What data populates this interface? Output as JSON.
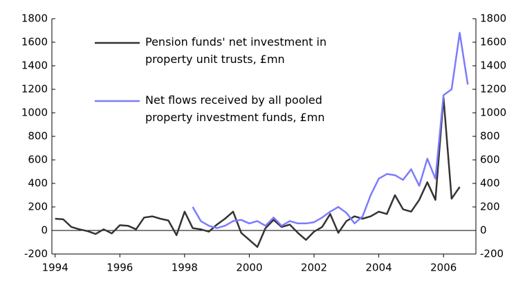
{
  "chart_data": {
    "type": "line",
    "series": [
      {
        "name": "Pension funds' net investment in property unit trusts, £mn",
        "color": "#333333",
        "x": [
          1994.0,
          1994.25,
          1994.5,
          1994.75,
          1995.0,
          1995.25,
          1995.5,
          1995.75,
          1996.0,
          1996.25,
          1996.5,
          1996.75,
          1997.0,
          1997.25,
          1997.5,
          1997.75,
          1998.0,
          1998.25,
          1998.5,
          1998.75,
          1999.0,
          1999.25,
          1999.5,
          1999.75,
          2000.0,
          2000.25,
          2000.5,
          2000.75,
          2001.0,
          2001.25,
          2001.5,
          2001.75,
          2002.0,
          2002.25,
          2002.5,
          2002.75,
          2003.0,
          2003.25,
          2003.5,
          2003.75,
          2004.0,
          2004.25,
          2004.5,
          2004.75,
          2005.0,
          2005.25,
          2005.5,
          2005.75,
          2006.0,
          2006.25,
          2006.5
        ],
        "values": [
          100,
          95,
          30,
          10,
          -5,
          -30,
          10,
          -25,
          45,
          40,
          10,
          110,
          120,
          100,
          85,
          -40,
          160,
          20,
          10,
          -10,
          50,
          100,
          160,
          -20,
          -80,
          -140,
          20,
          90,
          30,
          50,
          -20,
          -80,
          -10,
          30,
          140,
          -20,
          80,
          120,
          100,
          120,
          160,
          140,
          300,
          180,
          160,
          260,
          410,
          260,
          1130,
          270,
          370
        ]
      },
      {
        "name": "Net flows received by all pooled property investment funds, £mn",
        "color": "#7b7bff",
        "axis": "y2",
        "x": [
          1998.25,
          1998.5,
          1998.75,
          1999.0,
          1999.25,
          1999.5,
          1999.75,
          2000.0,
          2000.25,
          2000.5,
          2000.75,
          2001.0,
          2001.25,
          2001.5,
          2001.75,
          2002.0,
          2002.25,
          2002.5,
          2002.75,
          2003.0,
          2003.25,
          2003.5,
          2003.75,
          2004.0,
          2004.25,
          2004.5,
          2004.75,
          2005.0,
          2005.25,
          2005.5,
          2005.75,
          2006.0,
          2006.25,
          2006.5,
          2006.75
        ],
        "values": [
          200,
          80,
          40,
          20,
          40,
          80,
          90,
          60,
          80,
          40,
          110,
          40,
          80,
          60,
          60,
          70,
          110,
          160,
          200,
          150,
          60,
          120,
          300,
          440,
          480,
          470,
          430,
          520,
          380,
          610,
          440,
          1150,
          1200,
          1680,
          1240
        ]
      }
    ],
    "xlim": [
      1993.9,
      2007.0
    ],
    "xticks": [
      1994,
      1996,
      1998,
      2000,
      2002,
      2004,
      2006
    ],
    "ylim": [
      -200,
      1800
    ],
    "yticks": [
      -200,
      0,
      200,
      400,
      600,
      800,
      1000,
      1200,
      1400,
      1600,
      1800
    ],
    "y2lim": [
      -200,
      1800
    ],
    "y2ticks": [
      -200,
      0,
      200,
      400,
      600,
      800,
      1000,
      1200,
      1400,
      1600,
      1800
    ],
    "grid": false
  }
}
